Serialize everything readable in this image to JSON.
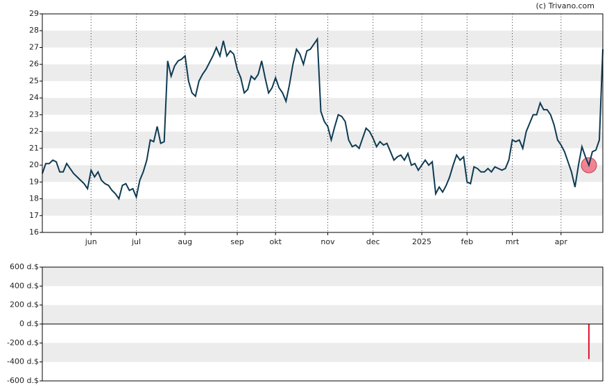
{
  "chart_data": [
    {
      "type": "line",
      "source": "(c) Trivano.com",
      "categories": [
        null,
        null,
        null,
        null,
        null,
        null,
        null,
        null,
        null,
        null,
        null,
        null,
        null,
        null,
        "jun",
        null,
        null,
        null,
        null,
        null,
        null,
        null,
        null,
        null,
        null,
        null,
        null,
        "jul",
        null,
        null,
        null,
        null,
        null,
        null,
        null,
        null,
        null,
        null,
        null,
        null,
        null,
        "aug",
        null,
        null,
        null,
        null,
        null,
        null,
        null,
        null,
        null,
        null,
        null,
        null,
        null,
        null,
        "sep",
        null,
        null,
        null,
        null,
        null,
        null,
        null,
        null,
        null,
        null,
        "okt",
        null,
        null,
        null,
        null,
        null,
        null,
        null,
        null,
        null,
        null,
        null,
        null,
        null,
        null,
        "nov",
        null,
        null,
        null,
        null,
        null,
        null,
        null,
        null,
        null,
        null,
        null,
        null,
        "dec",
        null,
        null,
        null,
        null,
        null,
        null,
        null,
        null,
        null,
        null,
        null,
        null,
        null,
        "2025",
        null,
        null,
        null,
        null,
        null,
        null,
        null,
        null,
        null,
        null,
        null,
        null,
        "feb",
        null,
        null,
        null,
        null,
        null,
        null,
        null,
        null,
        null,
        null,
        null,
        null,
        "mrt",
        null,
        null,
        null,
        null,
        null,
        null,
        null,
        null,
        null,
        null,
        null,
        null,
        null,
        "apr",
        null,
        null,
        null,
        null,
        null,
        null,
        null,
        null,
        null,
        null,
        null,
        null
      ],
      "series": [
        {
          "color": "#0d3a52",
          "values": [
            19.5,
            20.1,
            20.1,
            20.3,
            20.2,
            19.6,
            19.6,
            20.1,
            19.8,
            19.5,
            19.3,
            19.1,
            18.9,
            18.6,
            19.7,
            19.3,
            19.6,
            19.1,
            18.9,
            18.8,
            18.5,
            18.3,
            18.0,
            18.8,
            18.9,
            18.5,
            18.6,
            18.1,
            19.1,
            19.6,
            20.3,
            21.5,
            21.4,
            22.3,
            21.3,
            21.4,
            26.2,
            25.3,
            25.9,
            26.2,
            26.3,
            26.5,
            25.0,
            24.3,
            24.1,
            25.0,
            25.4,
            25.7,
            26.1,
            26.5,
            27.0,
            26.5,
            27.4,
            26.5,
            26.8,
            26.6,
            25.7,
            25.2,
            24.3,
            24.5,
            25.3,
            25.1,
            25.4,
            26.2,
            25.2,
            24.3,
            24.6,
            25.2,
            24.6,
            24.3,
            23.8,
            24.8,
            26.0,
            26.9,
            26.6,
            26.0,
            26.8,
            26.9,
            27.2,
            27.5,
            23.2,
            22.6,
            22.3,
            21.5,
            22.3,
            23.0,
            22.9,
            22.6,
            21.5,
            21.1,
            21.2,
            21.0,
            21.6,
            22.2,
            22.0,
            21.6,
            21.1,
            21.4,
            21.2,
            21.3,
            20.8,
            20.3,
            20.5,
            20.6,
            20.3,
            20.7,
            20.0,
            20.1,
            19.7,
            20.0,
            20.3,
            20.0,
            20.2,
            18.3,
            18.7,
            18.4,
            18.8,
            19.3,
            20.0,
            20.6,
            20.3,
            20.5,
            19.0,
            18.9,
            19.9,
            19.8,
            19.6,
            19.6,
            19.8,
            19.6,
            19.9,
            19.8,
            19.7,
            19.8,
            20.3,
            21.5,
            21.4,
            21.5,
            21.0,
            22.0,
            22.5,
            23.0,
            23.0,
            23.7,
            23.3,
            23.3,
            23.0,
            22.4,
            21.5,
            21.2,
            20.8,
            20.2,
            19.6,
            18.7,
            20.0,
            21.1,
            20.5,
            20.0,
            20.8,
            20.9,
            21.5,
            26.9
          ]
        }
      ],
      "ylim": [
        16,
        29
      ],
      "yticks": [
        16,
        17,
        18,
        19,
        20,
        21,
        22,
        23,
        24,
        25,
        26,
        27,
        28,
        29
      ],
      "grid": true,
      "band_color": "#ececec",
      "highlight_color": "#f07080"
    },
    {
      "type": "bar",
      "color": "#e0102a",
      "values": [
        null,
        null,
        null,
        null,
        null,
        null,
        null,
        null,
        null,
        null,
        null,
        null,
        null,
        null,
        null,
        null,
        null,
        null,
        null,
        null,
        null,
        null,
        null,
        null,
        null,
        null,
        null,
        null,
        null,
        null,
        null,
        null,
        null,
        null,
        null,
        null,
        null,
        null,
        null,
        null,
        null,
        null,
        null,
        null,
        null,
        null,
        null,
        null,
        null,
        null,
        null,
        null,
        null,
        null,
        null,
        null,
        null,
        null,
        null,
        null,
        null,
        null,
        null,
        null,
        null,
        null,
        null,
        null,
        null,
        null,
        null,
        null,
        null,
        null,
        null,
        null,
        null,
        null,
        null,
        null,
        null,
        null,
        null,
        null,
        null,
        null,
        null,
        null,
        null,
        null,
        null,
        null,
        null,
        null,
        null,
        null,
        null,
        null,
        null,
        null,
        null,
        null,
        null,
        null,
        null,
        null,
        null,
        null,
        null,
        null,
        null,
        null,
        null,
        null,
        null,
        null,
        null,
        null,
        null,
        null,
        null,
        null,
        null,
        null,
        null,
        null,
        null,
        null,
        null,
        null,
        null,
        null,
        null,
        null,
        null,
        null,
        null,
        null,
        null,
        null,
        null,
        null,
        null,
        null,
        null,
        null,
        null,
        null,
        null,
        null,
        null,
        null,
        null,
        null,
        null,
        null,
        null,
        -370,
        null,
        null,
        null,
        null
      ],
      "ylim": [
        -600,
        600
      ],
      "yticks": [
        {
          "value": -600,
          "label": "-600 d.$"
        },
        {
          "value": -400,
          "label": "-400 d.$"
        },
        {
          "value": -200,
          "label": "-200 d.$"
        },
        {
          "value": 0,
          "label": "0 d.$"
        },
        {
          "value": 200,
          "label": "200 d.$"
        },
        {
          "value": 400,
          "label": "400 d.$"
        },
        {
          "value": 600,
          "label": "600 d.$"
        }
      ],
      "band_color": "#ececec"
    }
  ]
}
